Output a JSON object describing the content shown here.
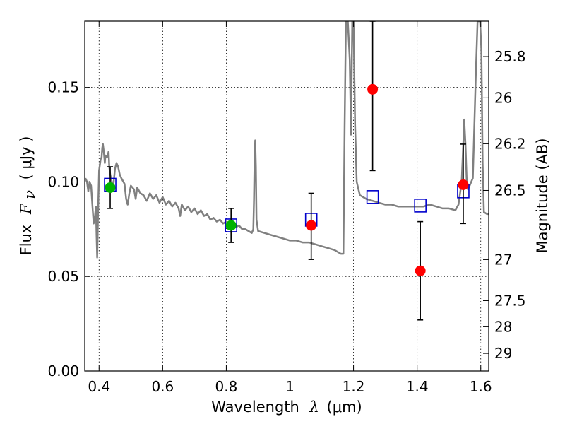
{
  "chart_data": {
    "type": "scatter",
    "xlabel": {
      "text": "Wavelength",
      "symbol": "λ",
      "unit": "(μm)"
    },
    "ylabel": {
      "text": "Flux",
      "symbol": "F",
      "subscript": "ν",
      "unit": "( μJy )"
    },
    "y2label": "Magnitude (AB)",
    "xlim": [
      0.355,
      1.625
    ],
    "ylim": [
      0.0,
      0.185
    ],
    "grid": true,
    "x_ticks": [
      {
        "value": 0.4,
        "label": "0.4"
      },
      {
        "value": 0.6,
        "label": "0.6"
      },
      {
        "value": 0.8,
        "label": "0.8"
      },
      {
        "value": 1.0,
        "label": "1"
      },
      {
        "value": 1.2,
        "label": "1.2"
      },
      {
        "value": 1.4,
        "label": "1.4"
      },
      {
        "value": 1.6,
        "label": "1.6"
      }
    ],
    "y_ticks": [
      {
        "value": 0.0,
        "label": "0.00"
      },
      {
        "value": 0.05,
        "label": "0.05"
      },
      {
        "value": 0.1,
        "label": "0.10"
      },
      {
        "value": 0.15,
        "label": "0.15"
      }
    ],
    "y2_ticks": [
      {
        "flux": 0.1663,
        "label": "25.8"
      },
      {
        "flux": 0.1445,
        "label": "26"
      },
      {
        "flux": 0.1202,
        "label": "26.2"
      },
      {
        "flux": 0.0955,
        "label": "26.5"
      },
      {
        "flux": 0.0589,
        "label": "27"
      },
      {
        "flux": 0.0372,
        "label": "27.5"
      },
      {
        "flux": 0.0234,
        "label": "28"
      },
      {
        "flux": 0.0093,
        "label": "29"
      }
    ],
    "model_sed": {
      "color": "#808080",
      "points": [
        [
          0.357,
          0.102
        ],
        [
          0.362,
          0.1
        ],
        [
          0.366,
          0.095
        ],
        [
          0.37,
          0.1
        ],
        [
          0.375,
          0.098
        ],
        [
          0.38,
          0.085
        ],
        [
          0.383,
          0.078
        ],
        [
          0.386,
          0.08
        ],
        [
          0.39,
          0.087
        ],
        [
          0.392,
          0.072
        ],
        [
          0.394,
          0.06
        ],
        [
          0.397,
          0.085
        ],
        [
          0.4,
          0.106
        ],
        [
          0.405,
          0.112
        ],
        [
          0.408,
          0.113
        ],
        [
          0.41,
          0.118
        ],
        [
          0.412,
          0.12
        ],
        [
          0.415,
          0.116
        ],
        [
          0.418,
          0.11
        ],
        [
          0.42,
          0.114
        ],
        [
          0.425,
          0.113
        ],
        [
          0.43,
          0.116
        ],
        [
          0.432,
          0.108
        ],
        [
          0.435,
          0.104
        ],
        [
          0.44,
          0.1
        ],
        [
          0.445,
          0.098
        ],
        [
          0.45,
          0.107
        ],
        [
          0.455,
          0.11
        ],
        [
          0.46,
          0.108
        ],
        [
          0.465,
          0.104
        ],
        [
          0.47,
          0.102
        ],
        [
          0.48,
          0.099
        ],
        [
          0.485,
          0.091
        ],
        [
          0.49,
          0.088
        ],
        [
          0.495,
          0.094
        ],
        [
          0.5,
          0.098
        ],
        [
          0.51,
          0.096
        ],
        [
          0.515,
          0.091
        ],
        [
          0.52,
          0.097
        ],
        [
          0.53,
          0.094
        ],
        [
          0.54,
          0.093
        ],
        [
          0.55,
          0.09
        ],
        [
          0.56,
          0.094
        ],
        [
          0.57,
          0.091
        ],
        [
          0.58,
          0.093
        ],
        [
          0.59,
          0.089
        ],
        [
          0.6,
          0.092
        ],
        [
          0.61,
          0.088
        ],
        [
          0.62,
          0.09
        ],
        [
          0.63,
          0.087
        ],
        [
          0.64,
          0.089
        ],
        [
          0.65,
          0.086
        ],
        [
          0.655,
          0.082
        ],
        [
          0.66,
          0.088
        ],
        [
          0.67,
          0.085
        ],
        [
          0.68,
          0.087
        ],
        [
          0.69,
          0.084
        ],
        [
          0.7,
          0.086
        ],
        [
          0.71,
          0.083
        ],
        [
          0.72,
          0.085
        ],
        [
          0.73,
          0.082
        ],
        [
          0.74,
          0.083
        ],
        [
          0.75,
          0.08
        ],
        [
          0.76,
          0.081
        ],
        [
          0.77,
          0.079
        ],
        [
          0.78,
          0.08
        ],
        [
          0.79,
          0.078
        ],
        [
          0.8,
          0.079
        ],
        [
          0.81,
          0.077
        ],
        [
          0.82,
          0.078
        ],
        [
          0.83,
          0.076
        ],
        [
          0.84,
          0.077
        ],
        [
          0.85,
          0.075
        ],
        [
          0.86,
          0.075
        ],
        [
          0.87,
          0.074
        ],
        [
          0.88,
          0.073
        ],
        [
          0.885,
          0.075
        ],
        [
          0.887,
          0.09
        ],
        [
          0.889,
          0.112
        ],
        [
          0.891,
          0.122
        ],
        [
          0.893,
          0.108
        ],
        [
          0.895,
          0.08
        ],
        [
          0.9,
          0.074
        ],
        [
          0.92,
          0.073
        ],
        [
          0.94,
          0.072
        ],
        [
          0.96,
          0.071
        ],
        [
          0.98,
          0.07
        ],
        [
          1.0,
          0.069
        ],
        [
          1.02,
          0.069
        ],
        [
          1.04,
          0.068
        ],
        [
          1.06,
          0.068
        ],
        [
          1.08,
          0.067
        ],
        [
          1.1,
          0.066
        ],
        [
          1.12,
          0.065
        ],
        [
          1.14,
          0.064
        ],
        [
          1.16,
          0.062
        ],
        [
          1.168,
          0.062
        ],
        [
          1.172,
          0.13
        ],
        [
          1.176,
          0.185
        ],
        [
          1.182,
          0.185
        ],
        [
          1.188,
          0.165
        ],
        [
          1.192,
          0.125
        ],
        [
          1.196,
          0.185
        ],
        [
          1.2,
          0.185
        ],
        [
          1.205,
          0.13
        ],
        [
          1.21,
          0.1
        ],
        [
          1.22,
          0.093
        ],
        [
          1.24,
          0.091
        ],
        [
          1.26,
          0.09
        ],
        [
          1.28,
          0.089
        ],
        [
          1.3,
          0.088
        ],
        [
          1.32,
          0.088
        ],
        [
          1.34,
          0.087
        ],
        [
          1.36,
          0.087
        ],
        [
          1.38,
          0.087
        ],
        [
          1.4,
          0.087
        ],
        [
          1.42,
          0.087
        ],
        [
          1.44,
          0.088
        ],
        [
          1.46,
          0.087
        ],
        [
          1.48,
          0.086
        ],
        [
          1.5,
          0.086
        ],
        [
          1.52,
          0.085
        ],
        [
          1.53,
          0.088
        ],
        [
          1.54,
          0.1
        ],
        [
          1.545,
          0.12
        ],
        [
          1.548,
          0.133
        ],
        [
          1.552,
          0.12
        ],
        [
          1.556,
          0.1
        ],
        [
          1.56,
          0.096
        ],
        [
          1.575,
          0.102
        ],
        [
          1.585,
          0.16
        ],
        [
          1.59,
          0.185
        ],
        [
          1.598,
          0.185
        ],
        [
          1.602,
          0.17
        ],
        [
          1.606,
          0.11
        ],
        [
          1.61,
          0.084
        ],
        [
          1.62,
          0.083
        ],
        [
          1.625,
          0.083
        ]
      ]
    },
    "model_photometry": {
      "color": "#0000cc",
      "marker": "open-square",
      "points": [
        {
          "x": 0.435,
          "y": 0.0985
        },
        {
          "x": 0.815,
          "y": 0.077
        },
        {
          "x": 1.067,
          "y": 0.08
        },
        {
          "x": 1.26,
          "y": 0.092
        },
        {
          "x": 1.41,
          "y": 0.0875
        },
        {
          "x": 1.545,
          "y": 0.095
        }
      ]
    },
    "observed_green": {
      "color": "#00b300",
      "marker": "filled-circle",
      "points": [
        {
          "x": 0.435,
          "y": 0.097,
          "yerr_low": 0.086,
          "yerr_high": 0.108
        },
        {
          "x": 0.815,
          "y": 0.077,
          "yerr_low": 0.068,
          "yerr_high": 0.086
        }
      ]
    },
    "observed_red": {
      "color": "#ff0000",
      "marker": "filled-circle",
      "points": [
        {
          "x": 1.067,
          "y": 0.077,
          "yerr_low": 0.059,
          "yerr_high": 0.094
        },
        {
          "x": 1.26,
          "y": 0.149,
          "yerr_low": 0.106,
          "yerr_high": 0.185
        },
        {
          "x": 1.41,
          "y": 0.053,
          "yerr_low": 0.027,
          "yerr_high": 0.079
        },
        {
          "x": 1.545,
          "y": 0.0985,
          "yerr_low": 0.078,
          "yerr_high": 0.12
        }
      ]
    }
  }
}
